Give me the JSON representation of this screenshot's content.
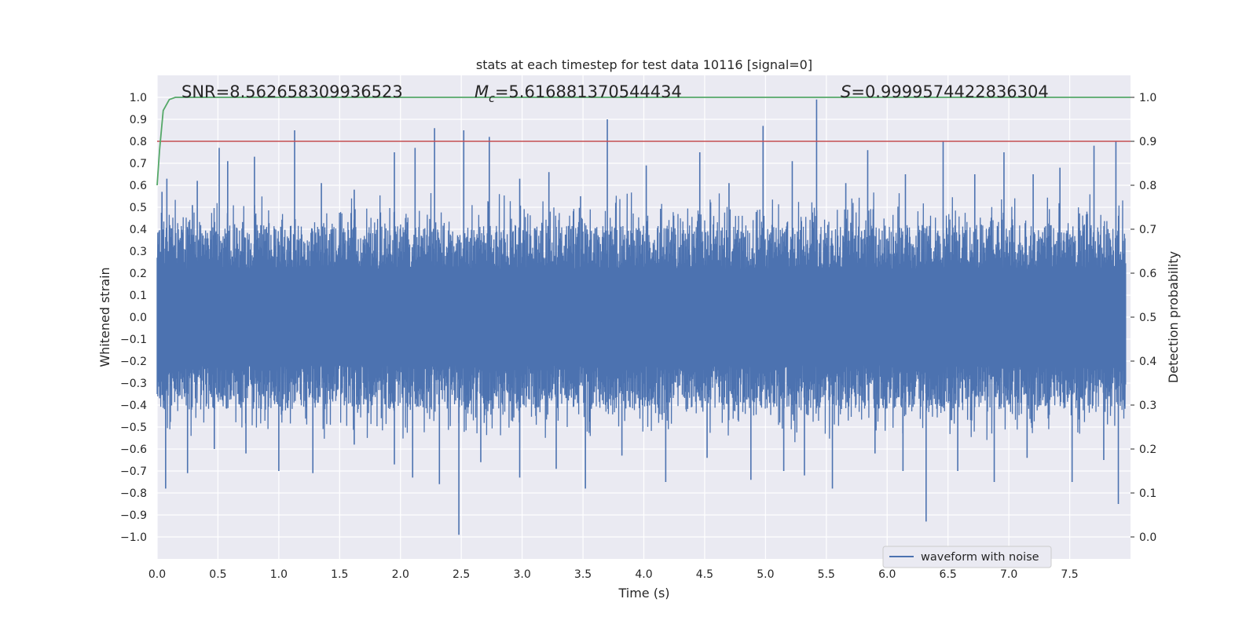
{
  "chart_data": {
    "type": "line",
    "title": "stats at each timestep for test data 10116 [signal=0]",
    "xlabel": "Time (s)",
    "ylabel": "Whitened strain",
    "y2label": "Detection probability",
    "xlim": [
      0.0,
      8.0
    ],
    "ylim": [
      -1.1,
      1.1
    ],
    "y2lim": [
      -0.05,
      1.05
    ],
    "xticks": [
      0.0,
      0.5,
      1.0,
      1.5,
      2.0,
      2.5,
      3.0,
      3.5,
      4.0,
      4.5,
      5.0,
      5.5,
      6.0,
      6.5,
      7.0,
      7.5
    ],
    "yticks": [
      -1.0,
      -0.9,
      -0.8,
      -0.7,
      -0.6,
      -0.5,
      -0.4,
      -0.3,
      -0.2,
      -0.1,
      0.0,
      0.1,
      0.2,
      0.3,
      0.4,
      0.5,
      0.6,
      0.7,
      0.8,
      0.9,
      1.0
    ],
    "y2ticks": [
      0.0,
      0.1,
      0.2,
      0.3,
      0.4,
      0.5,
      0.6,
      0.7,
      0.8,
      0.9,
      1.0
    ],
    "grid": true,
    "legend": {
      "location": "lower-right",
      "entries": [
        "waveform with noise"
      ]
    },
    "annotations": {
      "snr": "SNR=8.562658309936523",
      "mc_symbol": "M",
      "mc_subscript": "c",
      "mc_value": "=5.616881370544434",
      "s_symbol": "S",
      "s_value": "=0.9999574422836304"
    },
    "series": [
      {
        "name": "waveform with noise",
        "axis": "left",
        "color": "#4c72b0",
        "description": "dense whitened strain, mostly within ±0.4 with spikes",
        "spikes_pos": [
          [
            0.04,
            0.57
          ],
          [
            0.08,
            0.63
          ],
          [
            0.29,
            0.51
          ],
          [
            0.33,
            0.62
          ],
          [
            0.51,
            0.77
          ],
          [
            0.58,
            0.71
          ],
          [
            0.8,
            0.73
          ],
          [
            1.13,
            0.85
          ],
          [
            1.35,
            0.61
          ],
          [
            1.62,
            0.58
          ],
          [
            1.95,
            0.75
          ],
          [
            2.12,
            0.77
          ],
          [
            2.28,
            0.86
          ],
          [
            2.52,
            0.85
          ],
          [
            2.73,
            0.82
          ],
          [
            2.98,
            0.63
          ],
          [
            3.22,
            0.66
          ],
          [
            3.48,
            0.55
          ],
          [
            3.7,
            0.9
          ],
          [
            4.02,
            0.69
          ],
          [
            4.46,
            0.75
          ],
          [
            4.7,
            0.61
          ],
          [
            4.98,
            0.87
          ],
          [
            5.22,
            0.71
          ],
          [
            5.42,
            0.99
          ],
          [
            5.66,
            0.61
          ],
          [
            5.84,
            0.76
          ],
          [
            6.15,
            0.65
          ],
          [
            6.46,
            0.8
          ],
          [
            6.72,
            0.65
          ],
          [
            6.96,
            0.75
          ],
          [
            7.2,
            0.65
          ],
          [
            7.42,
            0.68
          ],
          [
            7.7,
            0.78
          ],
          [
            7.88,
            0.8
          ]
        ],
        "spikes_neg": [
          [
            0.07,
            -0.78
          ],
          [
            0.25,
            -0.71
          ],
          [
            0.47,
            -0.6
          ],
          [
            0.73,
            -0.62
          ],
          [
            1.0,
            -0.7
          ],
          [
            1.28,
            -0.71
          ],
          [
            1.62,
            -0.58
          ],
          [
            1.95,
            -0.67
          ],
          [
            2.1,
            -0.73
          ],
          [
            2.32,
            -0.76
          ],
          [
            2.48,
            -0.99
          ],
          [
            2.66,
            -0.66
          ],
          [
            2.98,
            -0.73
          ],
          [
            3.28,
            -0.69
          ],
          [
            3.52,
            -0.78
          ],
          [
            3.82,
            -0.63
          ],
          [
            4.18,
            -0.75
          ],
          [
            4.52,
            -0.64
          ],
          [
            4.88,
            -0.74
          ],
          [
            5.15,
            -0.7
          ],
          [
            5.32,
            -0.72
          ],
          [
            5.55,
            -0.78
          ],
          [
            5.9,
            -0.62
          ],
          [
            6.13,
            -0.7
          ],
          [
            6.32,
            -0.93
          ],
          [
            6.58,
            -0.7
          ],
          [
            6.88,
            -0.75
          ],
          [
            7.15,
            -0.64
          ],
          [
            7.52,
            -0.75
          ],
          [
            7.78,
            -0.65
          ],
          [
            7.9,
            -0.85
          ]
        ]
      },
      {
        "name": "detection probability",
        "axis": "right",
        "color": "#55a868",
        "x": [
          0.0,
          0.02,
          0.05,
          0.1,
          0.15,
          0.3,
          8.0
        ],
        "y": [
          0.8,
          0.88,
          0.97,
          0.995,
          1.0,
          1.0,
          1.0
        ]
      },
      {
        "name": "threshold",
        "axis": "right",
        "color": "#c44e52",
        "x": [
          0.0,
          8.0
        ],
        "y": [
          0.9,
          0.9
        ]
      }
    ]
  }
}
